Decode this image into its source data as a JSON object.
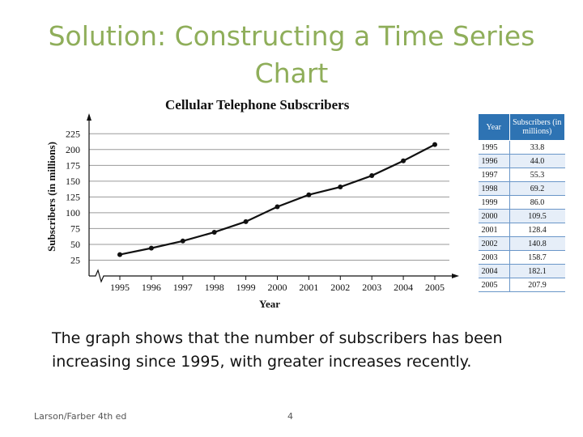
{
  "slide": {
    "title": "Solution: Constructing a Time Series Chart",
    "caption": "The graph shows that the number of subscribers has been increasing since 1995, with greater increases recently.",
    "footer_left": "Larson/Farber 4th ed",
    "page_number": "4"
  },
  "table": {
    "header_year": "Year",
    "header_subscribers": "Subscribers (in millions)",
    "rows": [
      {
        "year": "1995",
        "value": "33.8"
      },
      {
        "year": "1996",
        "value": "44.0"
      },
      {
        "year": "1997",
        "value": "55.3"
      },
      {
        "year": "1998",
        "value": "69.2"
      },
      {
        "year": "1999",
        "value": "86.0"
      },
      {
        "year": "2000",
        "value": "109.5"
      },
      {
        "year": "2001",
        "value": "128.4"
      },
      {
        "year": "2002",
        "value": "140.8"
      },
      {
        "year": "2003",
        "value": "158.7"
      },
      {
        "year": "2004",
        "value": "182.1"
      },
      {
        "year": "2005",
        "value": "207.9"
      }
    ]
  },
  "chart_data": {
    "type": "line",
    "title": "Cellular Telephone Subscribers",
    "xlabel": "Year",
    "ylabel": "Subscribers (in millions)",
    "x": [
      1995,
      1996,
      1997,
      1998,
      1999,
      2000,
      2001,
      2002,
      2003,
      2004,
      2005
    ],
    "series": [
      {
        "values": [
          33.8,
          44.0,
          55.3,
          69.2,
          86.0,
          109.5,
          128.4,
          140.8,
          158.7,
          182.1,
          207.9
        ]
      }
    ],
    "yticks": [
      25,
      50,
      75,
      100,
      125,
      150,
      175,
      200,
      225
    ],
    "ylim": [
      0,
      235
    ],
    "axis_break": true,
    "grid": true,
    "line_color": "#111111",
    "grid_color": "#9a9a9a"
  }
}
